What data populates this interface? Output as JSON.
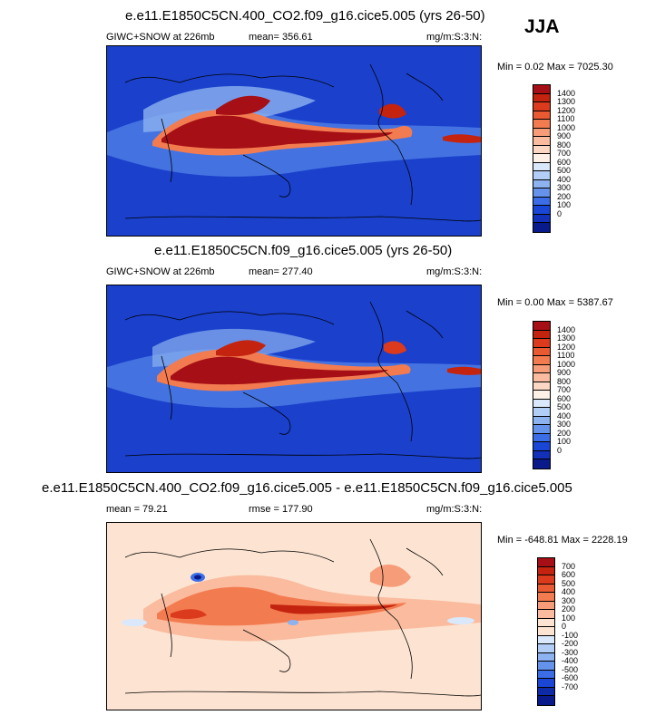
{
  "season": "JJA",
  "panels": [
    {
      "title": "e.e11.E1850C5CN.400_CO2.f09_g16.cice5.005 (yrs 26-50)",
      "left_label": "GIWC+SNOW at 226mb",
      "center_label": "mean= 356.61",
      "right_label": "mg/m:S:3:N:",
      "minmax": "Min =   0.02 Max = 7025.30",
      "colorbar_labels": [
        "1400",
        "1300",
        "1200",
        "1100",
        "1000",
        "900",
        "800",
        "700",
        "600",
        "500",
        "400",
        "300",
        "200",
        "100",
        "0"
      ],
      "colorbar_colors": [
        "#a50f15",
        "#c4230f",
        "#dc3a1c",
        "#ea5a32",
        "#f37b50",
        "#f79c78",
        "#fabb9e",
        "#fcd8c4",
        "#fdf0e6",
        "#d9e8fb",
        "#b3cef6",
        "#8cb2f0",
        "#6592eb",
        "#3b6ee6",
        "#1a46d6",
        "#1230b8",
        "#0a1a8a"
      ]
    },
    {
      "title": "e.e11.E1850C5CN.f09_g16.cice5.005 (yrs 26-50)",
      "left_label": "GIWC+SNOW at 226mb",
      "center_label": "mean= 277.40",
      "right_label": "mg/m:S:3:N:",
      "minmax": "Min =   0.00 Max = 5387.67",
      "colorbar_labels": [
        "1400",
        "1300",
        "1200",
        "1100",
        "1000",
        "900",
        "800",
        "700",
        "600",
        "500",
        "400",
        "300",
        "200",
        "100",
        "0"
      ],
      "colorbar_colors": [
        "#a50f15",
        "#c4230f",
        "#dc3a1c",
        "#ea5a32",
        "#f37b50",
        "#f79c78",
        "#fabb9e",
        "#fcd8c4",
        "#fdf0e6",
        "#d9e8fb",
        "#b3cef6",
        "#8cb2f0",
        "#6592eb",
        "#3b6ee6",
        "#1a46d6",
        "#1230b8",
        "#0a1a8a"
      ]
    },
    {
      "title": "e.e11.E1850C5CN.400_CO2.f09_g16.cice5.005 - e.e11.E1850C5CN.f09_g16.cice5.005",
      "left_label": "mean =  79.21",
      "center_label": "rmse = 177.90",
      "right_label": "mg/m:S:3:N:",
      "minmax": "Min = -648.81 Max = 2228.19",
      "colorbar_labels": [
        "700",
        "600",
        "500",
        "400",
        "300",
        "200",
        "100",
        "0",
        "-100",
        "-200",
        "-300",
        "-400",
        "-500",
        "-600",
        "-700"
      ],
      "colorbar_colors": [
        "#a50f15",
        "#c4230f",
        "#dc3a1c",
        "#ea5a32",
        "#f37b50",
        "#f79c78",
        "#fabb9e",
        "#fde4d2",
        "#fde4d2",
        "#d9e8fb",
        "#b3cef6",
        "#8cb2f0",
        "#6592eb",
        "#3b6ee6",
        "#1a46d6",
        "#0f2aa6",
        "#0a1a8a"
      ]
    }
  ]
}
